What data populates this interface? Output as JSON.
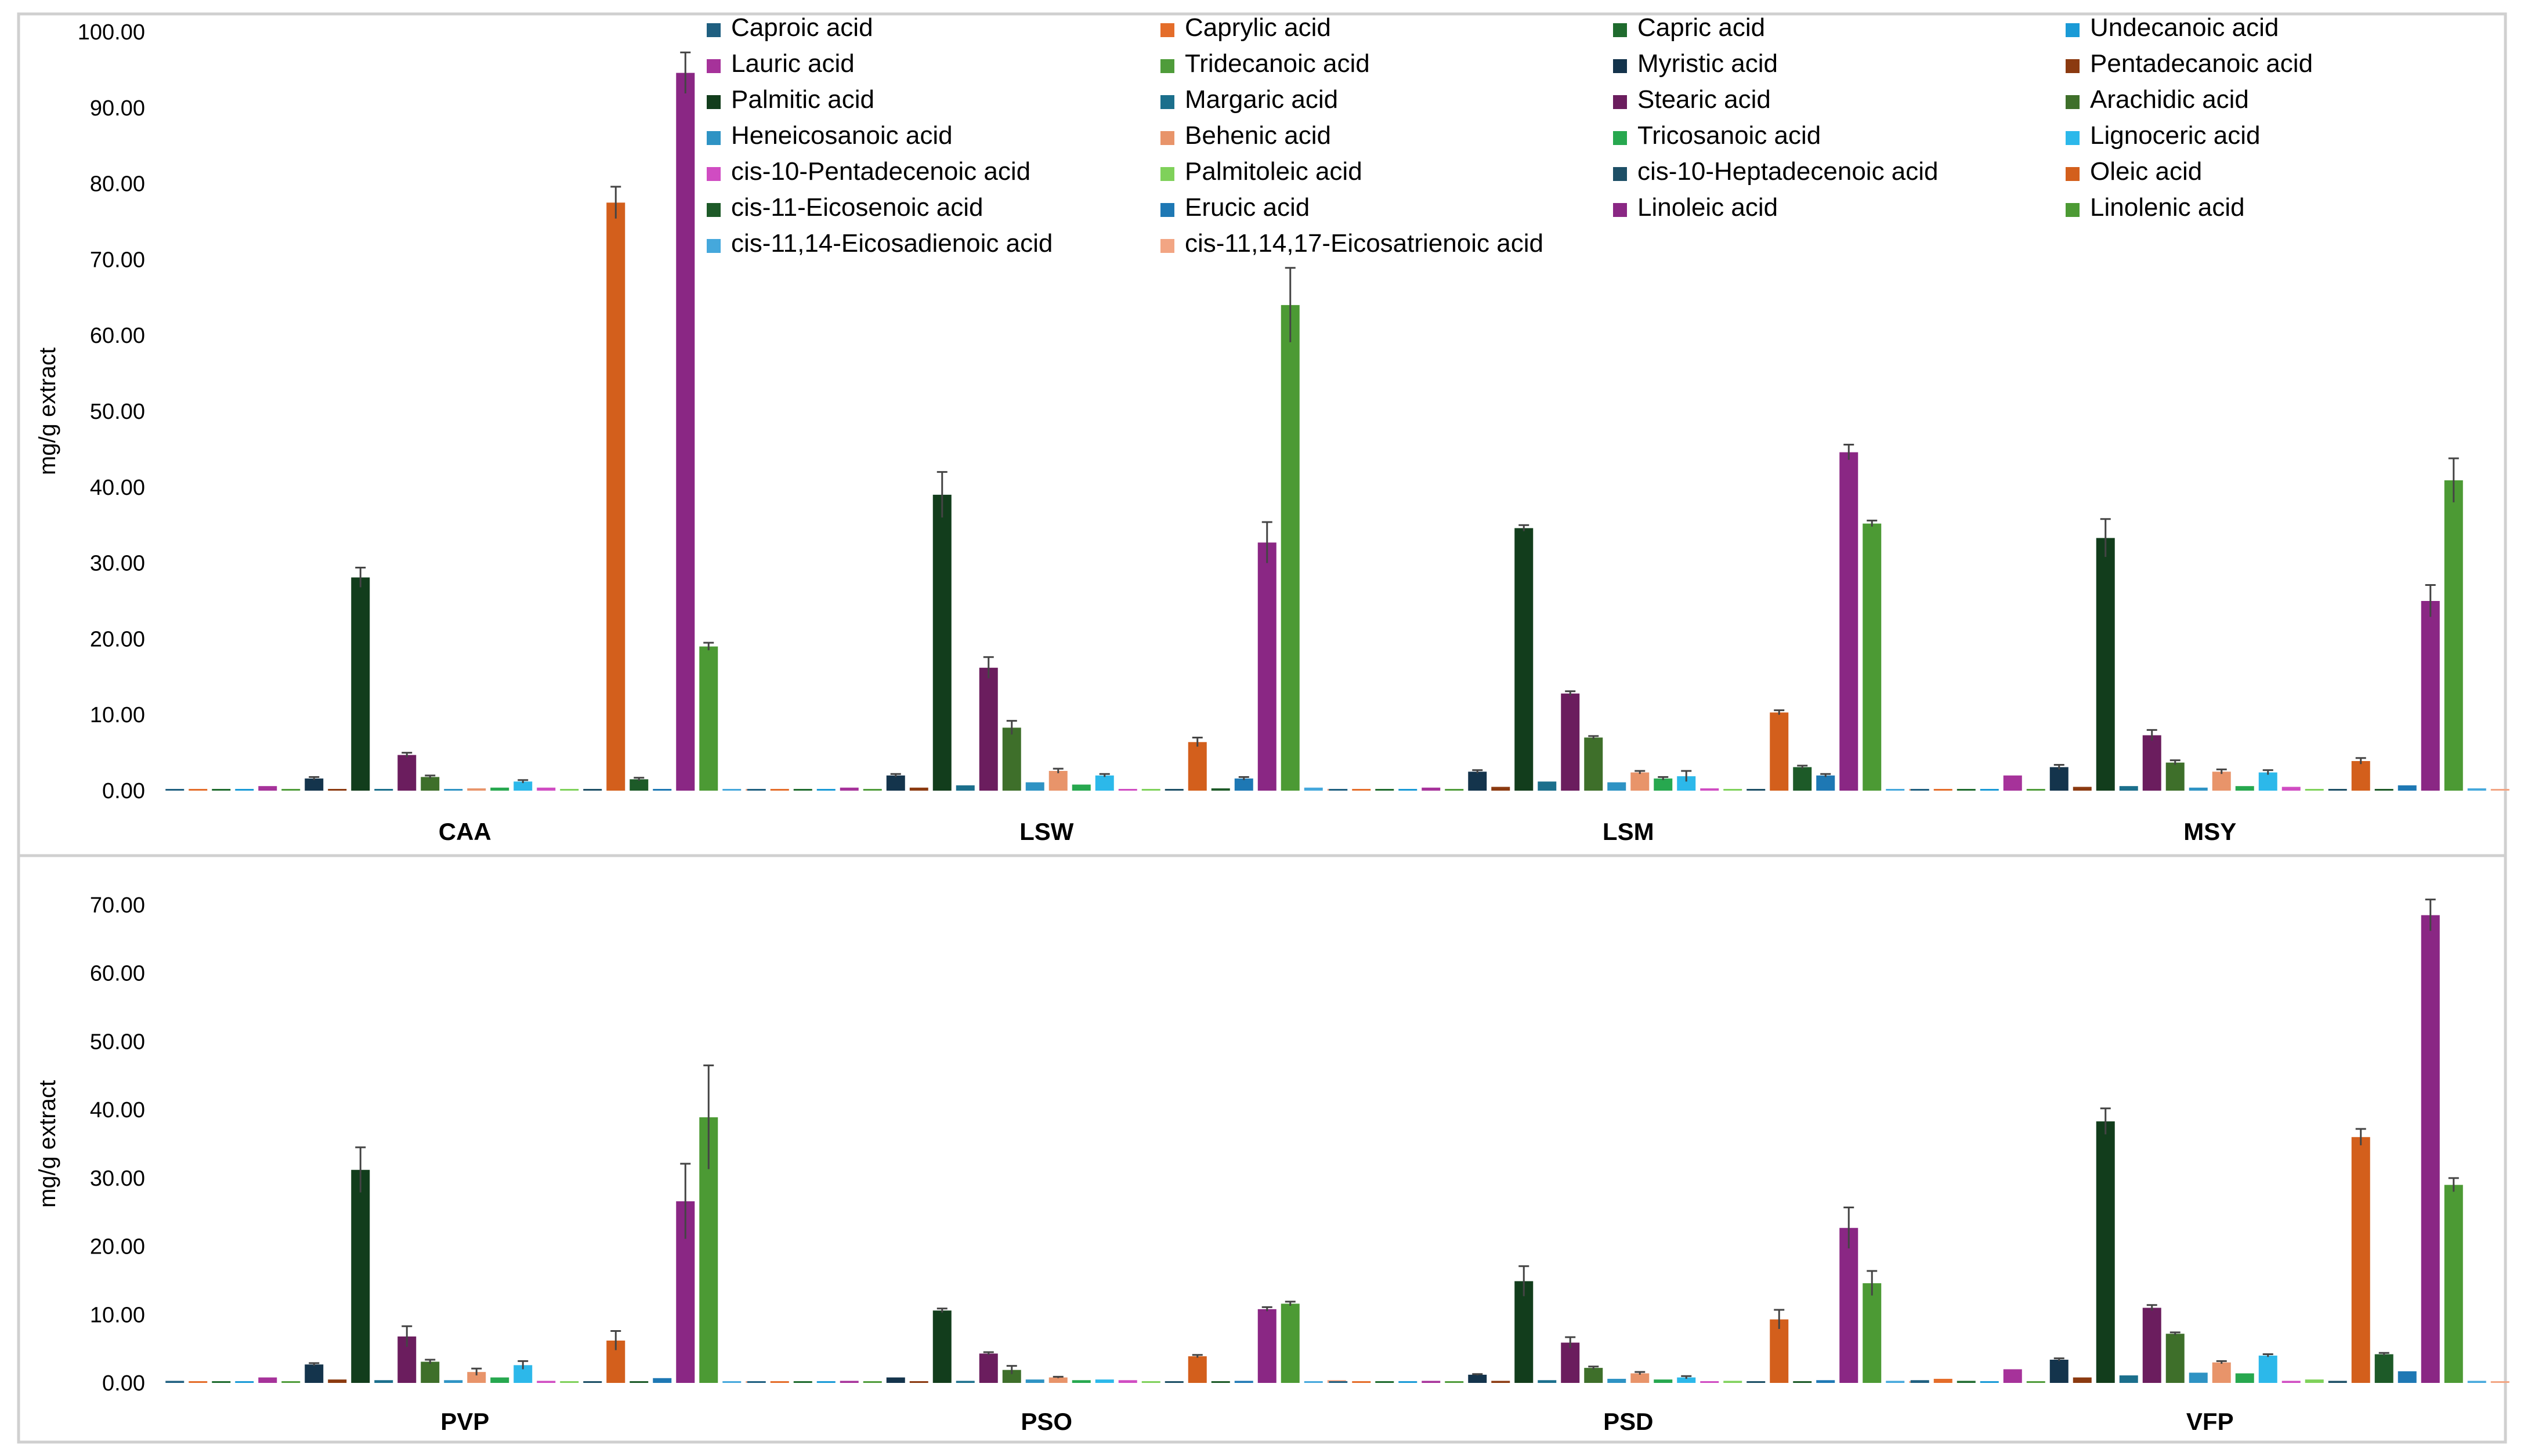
{
  "chart_data": [
    {
      "type": "bar",
      "title": "",
      "xlabel": "",
      "ylabel": "mg/g extract",
      "ylim": [
        0,
        100
      ],
      "ytick_values": [
        0,
        10,
        20,
        30,
        40,
        50,
        60,
        70,
        80,
        90,
        100
      ],
      "ytick_labels": [
        "0.00",
        "10.00",
        "20.00",
        "30.00",
        "40.00",
        "50.00",
        "60.00",
        "70.00",
        "80.00",
        "90.00",
        "100.00"
      ],
      "grid": false,
      "error_bars": true,
      "legend_position": "top",
      "categories": [
        "CAA",
        "LSW",
        "LSM",
        "MSY"
      ],
      "series_names": [
        "Caproic acid",
        "Caprylic acid",
        "Capric acid",
        "Undecanoic acid",
        "Lauric acid",
        "Tridecanoic acid",
        "Myristic acid",
        "Pentadecanoic acid",
        "Palmitic acid",
        "Margaric acid",
        "Stearic acid",
        "Arachidic acid",
        "Heneicosanoic acid",
        "Behenic acid",
        "Tricosanoic acid",
        "Lignoceric acid",
        "cis-10-Pentadecenoic acid",
        "Palmitoleic acid",
        "cis-10-Heptadecenoic acid",
        "Oleic acid",
        "cis-11-Eicosenoic acid",
        "Erucic acid",
        "Linoleic acid",
        "Linolenic acid",
        "cis-11,14-Eicosadienoic acid",
        "cis-11,14,17-Eicosatrienoic acid"
      ],
      "series_colors": [
        "#1f5f80",
        "#e46d2a",
        "#1f6b2e",
        "#1a9ad6",
        "#a6329a",
        "#4f9c3a",
        "#14344c",
        "#8b3a10",
        "#123d1c",
        "#1b6f8c",
        "#6b1d5e",
        "#3e6f2a",
        "#2e93c4",
        "#e8946a",
        "#27a84f",
        "#2cb8ea",
        "#d04cc2",
        "#7fd15a",
        "#1d4f66",
        "#d35f1c",
        "#1d5a28",
        "#1e78b4",
        "#8a2784",
        "#4c9a34",
        "#45a8dc",
        "#f2a583"
      ],
      "values": [
        [
          0.05,
          0.1,
          0.1,
          0.05,
          0.6,
          0.1,
          1.6,
          0.1,
          28.1,
          0.2,
          4.7,
          1.8,
          0.2,
          0.3,
          0.4,
          1.2,
          0.4,
          0.1,
          0.1,
          77.5,
          1.5,
          0.2,
          94.6,
          19.0,
          0.1,
          0.1
        ],
        [
          0.2,
          0.1,
          0.1,
          0.1,
          0.4,
          0.1,
          2.0,
          0.4,
          39.0,
          0.7,
          16.2,
          8.3,
          1.1,
          2.6,
          0.8,
          2.0,
          0.2,
          0.2,
          0.2,
          6.4,
          0.3,
          1.6,
          32.7,
          64.0,
          0.4,
          0.2
        ],
        [
          0.2,
          0.1,
          0.1,
          0.1,
          0.4,
          0.1,
          2.5,
          0.5,
          34.6,
          1.2,
          12.8,
          7.0,
          1.1,
          2.4,
          1.6,
          1.9,
          0.3,
          0.2,
          0.1,
          10.3,
          3.1,
          2.0,
          44.6,
          35.2,
          0.2,
          0.1
        ],
        [
          0.2,
          0.1,
          0.1,
          0.1,
          2.0,
          0.1,
          3.1,
          0.5,
          33.3,
          0.6,
          7.3,
          3.7,
          0.4,
          2.5,
          0.6,
          2.4,
          0.5,
          0.2,
          0.2,
          3.9,
          0.2,
          0.7,
          25.0,
          40.9,
          0.3,
          0.1
        ]
      ],
      "errors": [
        [
          0,
          0,
          0,
          0,
          0,
          0,
          0.2,
          0,
          1.3,
          0,
          0.3,
          0.2,
          0,
          0,
          0,
          0.2,
          0,
          0,
          0,
          2.1,
          0.2,
          0,
          2.7,
          0.5,
          0,
          0
        ],
        [
          0,
          0,
          0,
          0,
          0,
          0,
          0.2,
          0,
          3.0,
          0,
          1.4,
          0.9,
          0,
          0.3,
          0,
          0.2,
          0,
          0,
          0,
          0.6,
          0,
          0.2,
          2.7,
          4.9,
          0,
          0
        ],
        [
          0,
          0,
          0,
          0,
          0,
          0,
          0.2,
          0,
          0.4,
          0,
          0.3,
          0.2,
          0,
          0.2,
          0.2,
          0.7,
          0,
          0,
          0,
          0.3,
          0.2,
          0.2,
          1.0,
          0.4,
          0,
          0
        ],
        [
          0,
          0,
          0,
          0,
          0,
          0,
          0.3,
          0,
          2.5,
          0,
          0.7,
          0.3,
          0,
          0.3,
          0,
          0.3,
          0,
          0,
          0,
          0.4,
          0,
          0,
          2.1,
          2.9,
          0,
          0
        ]
      ]
    },
    {
      "type": "bar",
      "title": "",
      "xlabel": "",
      "ylabel": "mg/g extract",
      "ylim": [
        0,
        70
      ],
      "ytick_values": [
        0,
        10,
        20,
        30,
        40,
        50,
        60,
        70
      ],
      "ytick_labels": [
        "0.00",
        "10.00",
        "20.00",
        "30.00",
        "40.00",
        "50.00",
        "60.00",
        "70.00"
      ],
      "grid": false,
      "error_bars": true,
      "legend_position": "none",
      "categories": [
        "PVP",
        "PSO",
        "PSD",
        "VFP"
      ],
      "values": [
        [
          0.3,
          0.2,
          0.2,
          0.1,
          0.8,
          0.1,
          2.7,
          0.5,
          31.2,
          0.4,
          6.8,
          3.1,
          0.4,
          1.6,
          0.8,
          2.6,
          0.3,
          0.2,
          0.1,
          6.2,
          0.2,
          0.7,
          26.6,
          38.9,
          0.2,
          0.1
        ],
        [
          0.1,
          0.1,
          0.1,
          0.1,
          0.3,
          0.1,
          0.8,
          0.2,
          10.6,
          0.3,
          4.3,
          1.9,
          0.5,
          0.8,
          0.4,
          0.5,
          0.4,
          0.2,
          0.1,
          3.9,
          0.1,
          0.3,
          10.8,
          11.6,
          0.2,
          0.4
        ],
        [
          0.1,
          0.1,
          0.1,
          0.1,
          0.3,
          0.1,
          1.2,
          0.3,
          14.9,
          0.4,
          5.9,
          2.2,
          0.6,
          1.4,
          0.5,
          0.8,
          0.2,
          0.3,
          0.1,
          9.3,
          0.1,
          0.4,
          22.7,
          14.6,
          0.3,
          0.1
        ],
        [
          0.4,
          0.6,
          0.3,
          0.2,
          2.0,
          0.1,
          3.4,
          0.8,
          38.3,
          1.1,
          11.0,
          7.2,
          1.5,
          3.0,
          1.4,
          4.0,
          0.3,
          0.5,
          0.3,
          36.0,
          4.2,
          1.7,
          68.5,
          29.0,
          0.3,
          0.1
        ]
      ],
      "errors": [
        [
          0,
          0,
          0,
          0,
          0,
          0,
          0.2,
          0,
          3.3,
          0,
          1.5,
          0.3,
          0,
          0.5,
          0,
          0.6,
          0,
          0,
          0,
          1.4,
          0,
          0,
          5.5,
          7.6,
          0,
          0
        ],
        [
          0,
          0,
          0,
          0,
          0,
          0,
          0,
          0,
          0.3,
          0,
          0.2,
          0.6,
          0,
          0.1,
          0,
          0,
          0,
          0,
          0,
          0.2,
          0,
          0,
          0.3,
          0.3,
          0,
          0
        ],
        [
          0,
          0,
          0,
          0,
          0,
          0,
          0.1,
          0,
          2.2,
          0,
          0.8,
          0.2,
          0,
          0.2,
          0,
          0.2,
          0,
          0,
          0,
          1.4,
          0,
          0,
          3.0,
          1.8,
          0,
          0
        ],
        [
          0,
          0,
          0,
          0,
          0,
          0,
          0.2,
          0,
          1.9,
          0,
          0.4,
          0.2,
          0,
          0.2,
          0,
          0.2,
          0,
          0,
          0,
          1.2,
          0.2,
          0,
          2.3,
          1.0,
          0,
          0
        ]
      ]
    }
  ]
}
